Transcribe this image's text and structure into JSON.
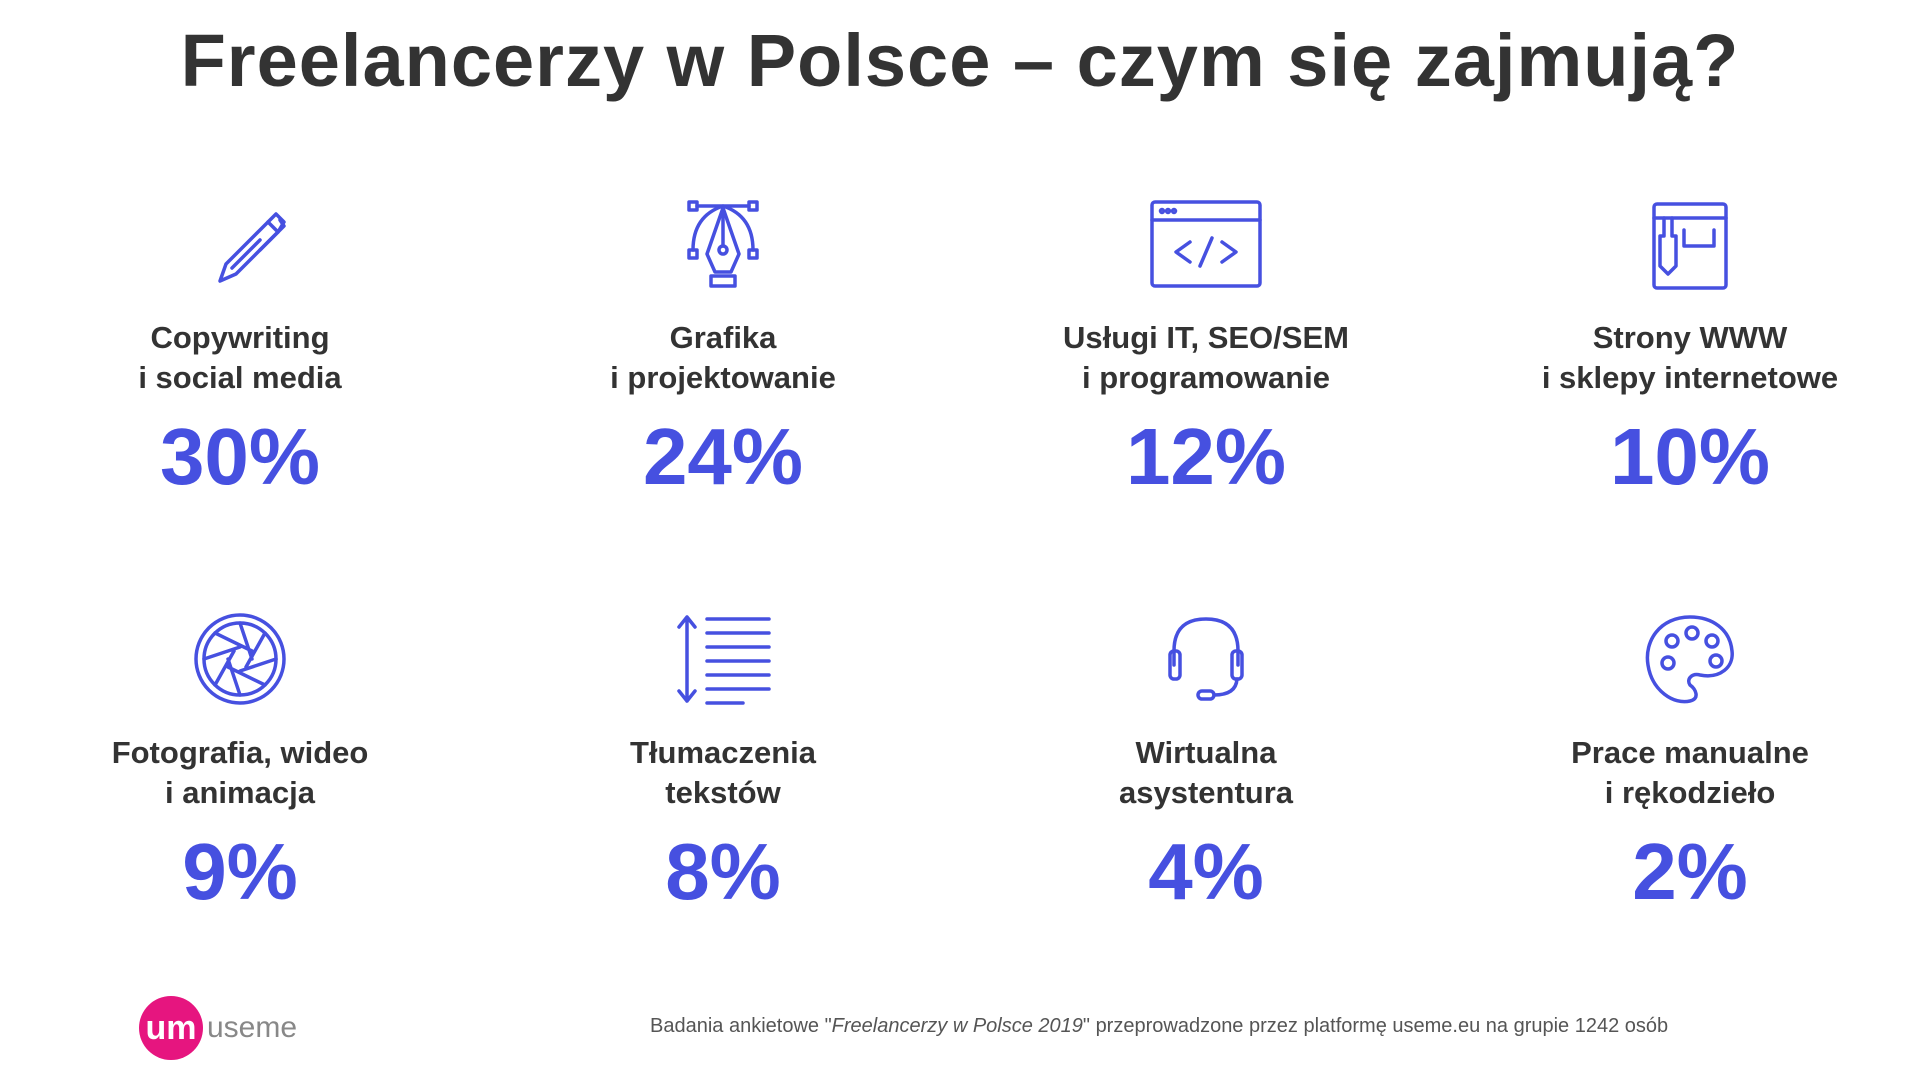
{
  "title": "Freelancerzy w Polsce – czym się zajmują?",
  "colors": {
    "accent": "#4650e0",
    "text": "#333333",
    "logo": "#e6157f"
  },
  "items": [
    {
      "icon": "pen-icon",
      "line1": "Copywriting",
      "line2": "i social media",
      "percent": "30%"
    },
    {
      "icon": "pen-tool-icon",
      "line1": "Grafika",
      "line2": "i projektowanie",
      "percent": "24%"
    },
    {
      "icon": "code-window-icon",
      "line1": "Usługi IT, SEO/SEM",
      "line2": "i programowanie",
      "percent": "12%"
    },
    {
      "icon": "shopping-bag-icon",
      "line1": "Strony WWW",
      "line2": "i sklepy internetowe",
      "percent": "10%"
    },
    {
      "icon": "aperture-icon",
      "line1": "Fotografia, wideo",
      "line2": "i animacja",
      "percent": "9%"
    },
    {
      "icon": "text-lines-icon",
      "line1": "Tłumaczenia",
      "line2": "tekstów",
      "percent": "8%"
    },
    {
      "icon": "headset-icon",
      "line1": "Wirtualna",
      "line2": "asystentura",
      "percent": "4%"
    },
    {
      "icon": "palette-icon",
      "line1": "Prace manualne",
      "line2": "i rękodzieło",
      "percent": "2%"
    }
  ],
  "logo": {
    "mark": "um",
    "word": "useme"
  },
  "footer": {
    "pre": "Badania ankietowe \"",
    "italic": "Freelancerzy w Polsce 2019",
    "post": "\" przeprowadzone przez platformę useme.eu na grupie 1242 osób"
  }
}
